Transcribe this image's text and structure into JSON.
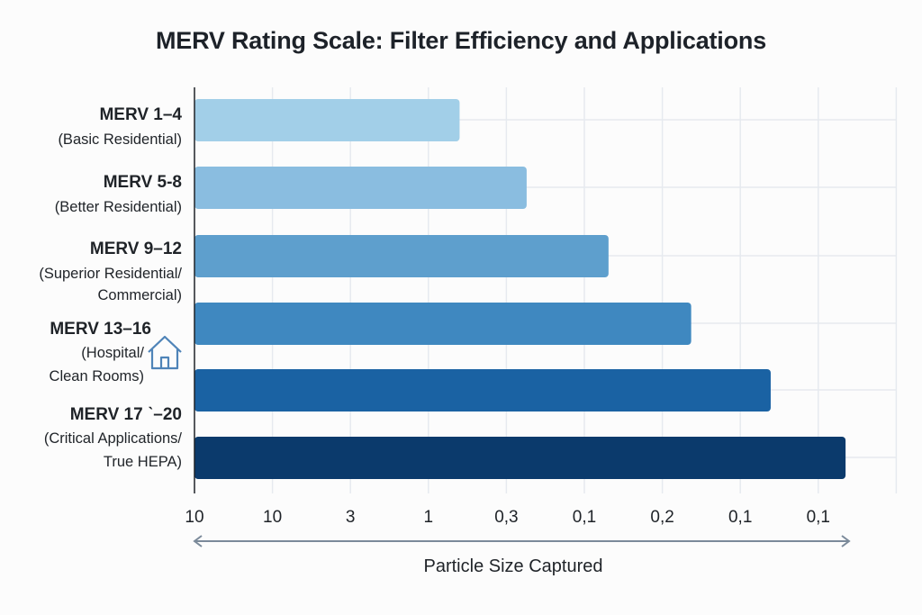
{
  "chart_data": {
    "type": "bar",
    "orientation": "horizontal",
    "title": "MERV Rating Scale: Filter Efficiency and Applications",
    "xlabel": "Particle Size Captured",
    "ylabel": "",
    "x_tick_labels": [
      "10",
      "10",
      "3",
      "1",
      "0,3",
      "0,1",
      "0,2",
      "0,1",
      "0,1"
    ],
    "xlim_ticks": [
      0,
      9
    ],
    "grid": true,
    "legend": "none",
    "categories": [
      {
        "name": "MERV 1–4",
        "desc": [
          "(Basic Residential)"
        ]
      },
      {
        "name": "MERV 5-8",
        "desc": [
          "(Better Residential)"
        ]
      },
      {
        "name": "MERV 9–12",
        "desc": [
          "(Superior Residential/",
          "Commercial)"
        ]
      },
      {
        "name": "MERV 13–16",
        "desc": [
          "(Hospital/",
          "Clean Rooms)"
        ]
      },
      {
        "name": "MERV 17 ˋ–20",
        "desc": [
          "(Critical Applications/",
          "True HEPA)"
        ]
      }
    ],
    "bars": [
      {
        "label": "MERV 1–4",
        "value": 3.4,
        "color": "#a2cfe8"
      },
      {
        "label": "MERV 5-8",
        "value": 4.26,
        "color": "#8abde0"
      },
      {
        "label": "MERV 9–12",
        "value": 5.31,
        "color": "#5e9fcd"
      },
      {
        "label": "MERV 13–16",
        "value": 6.37,
        "color": "#3f88c0"
      },
      {
        "label": "",
        "value": 7.39,
        "color": "#1a62a3"
      },
      {
        "label": "MERV 17–20",
        "value": 8.35,
        "color": "#0b3a6c"
      }
    ],
    "value_unit": "tick-index (bar length measured in x-tick intervals)",
    "annotations": [
      {
        "type": "icon",
        "name": "house-icon",
        "near": "MERV 13–16"
      },
      {
        "type": "double-arrow",
        "under": "x-axis"
      }
    ]
  },
  "colors": {
    "axis": "#1f2328",
    "grid": "#e6eaef",
    "arrow": "#7b8a9a",
    "icon": "#4f84b8"
  }
}
